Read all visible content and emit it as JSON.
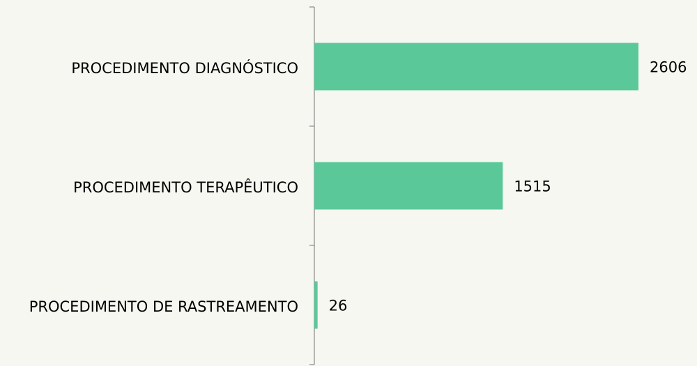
{
  "chart_data": {
    "type": "barh",
    "categories": [
      "PROCEDIMENTO DIAGNÓSTICO",
      "PROCEDIMENTO TERAPÊUTICO",
      "PROCEDIMENTO DE RASTREAMENTO"
    ],
    "values": [
      2606,
      1515,
      26
    ],
    "color": "#5bc89a"
  }
}
